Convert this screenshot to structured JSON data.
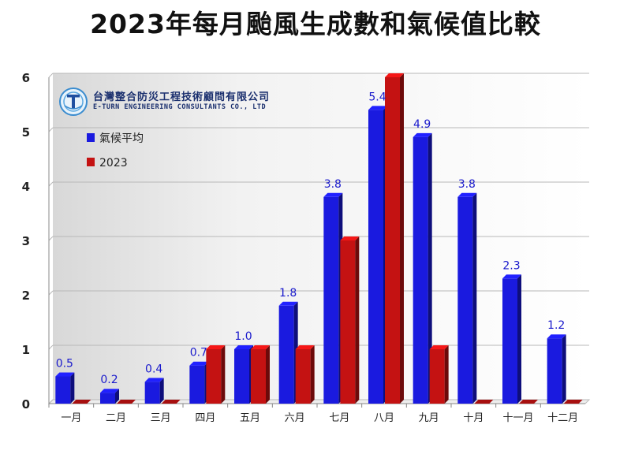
{
  "title": "2023年每月颱風生成數和氣候值比較",
  "logo": {
    "name_zh": "台灣整合防災工程技術顧問有限公司",
    "name_en": "E-TURN ENGINEERING CONSULTANTS CO., LTD"
  },
  "colors": {
    "climate": "#1a1adf",
    "year2023": "#c41212",
    "label": "#1a1acc"
  },
  "chart_data": {
    "type": "bar",
    "title": "2023年每月颱風生成數和氣候值比較",
    "xlabel": "",
    "ylabel": "",
    "ylim": [
      0,
      6
    ],
    "yticks": [
      0,
      1,
      2,
      3,
      4,
      5,
      6
    ],
    "grid": true,
    "legend_position": "top-left",
    "categories": [
      "一月",
      "二月",
      "三月",
      "四月",
      "五月",
      "六月",
      "七月",
      "八月",
      "九月",
      "十月",
      "十一月",
      "十二月"
    ],
    "series": [
      {
        "name": "氣候平均",
        "values": [
          0.5,
          0.2,
          0.4,
          0.7,
          1.0,
          1.8,
          3.8,
          5.4,
          4.9,
          3.8,
          2.3,
          1.2
        ],
        "data_labels": [
          "0.5",
          "0.2",
          "0.4",
          "0.7",
          "1.0",
          "1.8",
          "3.8",
          "5.4",
          "4.9",
          "3.8",
          "2.3",
          "1.2"
        ]
      },
      {
        "name": "2023",
        "values": [
          0,
          0,
          0,
          1,
          1,
          1,
          3,
          6,
          1,
          0,
          0,
          0
        ]
      }
    ]
  }
}
